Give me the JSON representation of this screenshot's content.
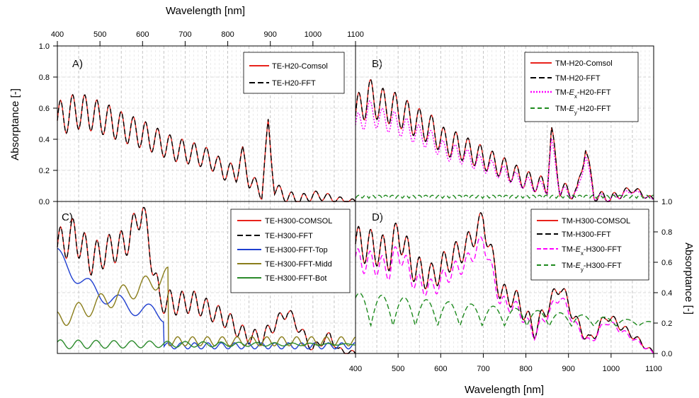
{
  "figure": {
    "top_xlabel": "Wavelength [nm]",
    "bottom_xlabel": "Wavelength [nm]",
    "left_ylabel": "Absorptance  [-]",
    "right_ylabel": "Absorptance  [-]",
    "x_ticks": [
      "400",
      "500",
      "600",
      "700",
      "800",
      "900",
      "1000",
      "1100"
    ],
    "y_ticks": [
      "0.0",
      "0.2",
      "0.4",
      "0.6",
      "0.8",
      "1.0"
    ]
  },
  "chart_data": [
    {
      "panel": "A)",
      "type": "line",
      "xlim": [
        400,
        1100
      ],
      "ylim": [
        0,
        1
      ],
      "xlabel": "Wavelength [nm]",
      "ylabel": "Absorptance  [-]",
      "legend": "top-right",
      "series": [
        {
          "name": "TE-H20-Comsol",
          "color": "#e8221b",
          "style": "solid"
        },
        {
          "name": "TE-H20-FFT",
          "color": "#000000",
          "style": "dashed"
        }
      ],
      "x": [
        400,
        430,
        460,
        490,
        520,
        550,
        580,
        610,
        640,
        670,
        700,
        730,
        760,
        790,
        820,
        835,
        850,
        880,
        895,
        910,
        940,
        970,
        1000,
        1030,
        1060,
        1090,
        1100
      ],
      "values": [
        0.52,
        0.57,
        0.58,
        0.55,
        0.52,
        0.48,
        0.45,
        0.42,
        0.38,
        0.34,
        0.32,
        0.3,
        0.27,
        0.2,
        0.18,
        0.3,
        0.14,
        0.06,
        0.49,
        0.08,
        0.03,
        0.01,
        0.04,
        0.03,
        0.01,
        0.0,
        0.0
      ]
    },
    {
      "panel": "B)",
      "type": "line",
      "xlim": [
        400,
        1100
      ],
      "ylim": [
        0,
        1
      ],
      "xlabel": "Wavelength [nm]",
      "ylabel": "Absorptance  [-]",
      "legend": "top-right",
      "series": [
        {
          "name": "TM-H20-Comsol",
          "color": "#e8221b",
          "style": "solid"
        },
        {
          "name": "TM-H20-FFT",
          "color": "#000000",
          "style": "dashed"
        },
        {
          "name": "TM-Ex-H20-FFT",
          "color": "#ff00ff",
          "style": "dotted"
        },
        {
          "name": "TM-Ey-H20-FFT",
          "color": "#1e8a1e",
          "style": "dashed"
        }
      ],
      "x": [
        400,
        430,
        460,
        490,
        520,
        550,
        580,
        610,
        640,
        670,
        700,
        730,
        760,
        790,
        820,
        850,
        860,
        880,
        920,
        940,
        960,
        1000,
        1050,
        1100
      ],
      "values": [
        0.55,
        0.68,
        0.62,
        0.6,
        0.55,
        0.5,
        0.46,
        0.38,
        0.36,
        0.32,
        0.28,
        0.24,
        0.2,
        0.15,
        0.12,
        0.1,
        0.45,
        0.08,
        0.05,
        0.35,
        0.04,
        0.02,
        0.08,
        0.01
      ]
    },
    {
      "panel": "C)",
      "type": "line",
      "xlim": [
        400,
        1100
      ],
      "ylim": [
        0,
        1
      ],
      "xlabel": "Wavelength [nm]",
      "ylabel": "Absorptance  [-]",
      "legend": "top-right",
      "series": [
        {
          "name": "TE-H300-COMSOL",
          "color": "#e8221b",
          "style": "solid"
        },
        {
          "name": "TE-H300-FFT",
          "color": "#000000",
          "style": "dashed"
        },
        {
          "name": "TE-H300-FFT-Top",
          "color": "#1f3fd0",
          "style": "solid"
        },
        {
          "name": "TE-H300-FFT-Midd",
          "color": "#8a7d1a",
          "style": "solid"
        },
        {
          "name": "TE-H300-FFT-Bot",
          "color": "#2a8a2a",
          "style": "solid"
        }
      ],
      "x": [
        400,
        440,
        480,
        520,
        560,
        600,
        640,
        680,
        720,
        760,
        800,
        840,
        880,
        940,
        1000,
        1040,
        1060,
        1100
      ],
      "values": [
        0.7,
        0.78,
        0.62,
        0.68,
        0.72,
        0.95,
        0.35,
        0.33,
        0.34,
        0.28,
        0.22,
        0.12,
        0.1,
        0.28,
        0.03,
        0.12,
        0.02,
        0.0
      ]
    },
    {
      "panel": "D)",
      "type": "line",
      "xlim": [
        400,
        1100
      ],
      "ylim": [
        0,
        1
      ],
      "xlabel": "Wavelength [nm]",
      "ylabel": "Absorptance  [-]",
      "legend": "top-right",
      "series": [
        {
          "name": "TM-H300-COMSOL",
          "color": "#e8221b",
          "style": "solid"
        },
        {
          "name": "TM-H300-FFT",
          "color": "#000000",
          "style": "dashed"
        },
        {
          "name": "TM-Ex-H300-FFT",
          "color": "#ff00ff",
          "style": "dashed"
        },
        {
          "name": "TM-Ey-H300-FFT",
          "color": "#1e8a1e",
          "style": "dashed"
        }
      ],
      "x": [
        400,
        440,
        480,
        500,
        540,
        580,
        620,
        660,
        700,
        740,
        780,
        820,
        850,
        880,
        920,
        950,
        990,
        1050,
        1100
      ],
      "values": [
        0.72,
        0.7,
        0.65,
        0.8,
        0.55,
        0.5,
        0.62,
        0.7,
        0.88,
        0.4,
        0.35,
        0.15,
        0.3,
        0.45,
        0.2,
        0.08,
        0.25,
        0.12,
        0.0
      ]
    }
  ],
  "legend_texts": {
    "A": [
      "TE-H20-Comsol",
      "TE-H20-FFT"
    ],
    "B": [
      [
        "TM-H20-Comsol"
      ],
      [
        "TM-H20-FFT"
      ],
      [
        "TM-",
        "E",
        "x",
        "-H20-FFT"
      ],
      [
        "TM-",
        "E",
        "y",
        "-H20-FFT"
      ]
    ],
    "C": [
      "TE-H300-COMSOL",
      "TE-H300-FFT",
      "TE-H300-FFT-Top",
      "TE-H300-FFT-Midd",
      "TE-H300-FFT-Bot"
    ],
    "D": [
      [
        "TM-H300-COMSOL"
      ],
      [
        "TM-H300-FFT"
      ],
      [
        "TM-",
        "E",
        "x",
        "-H300-FFT"
      ],
      [
        "TM-",
        "E",
        "y",
        "-H300-FFT"
      ]
    ]
  }
}
